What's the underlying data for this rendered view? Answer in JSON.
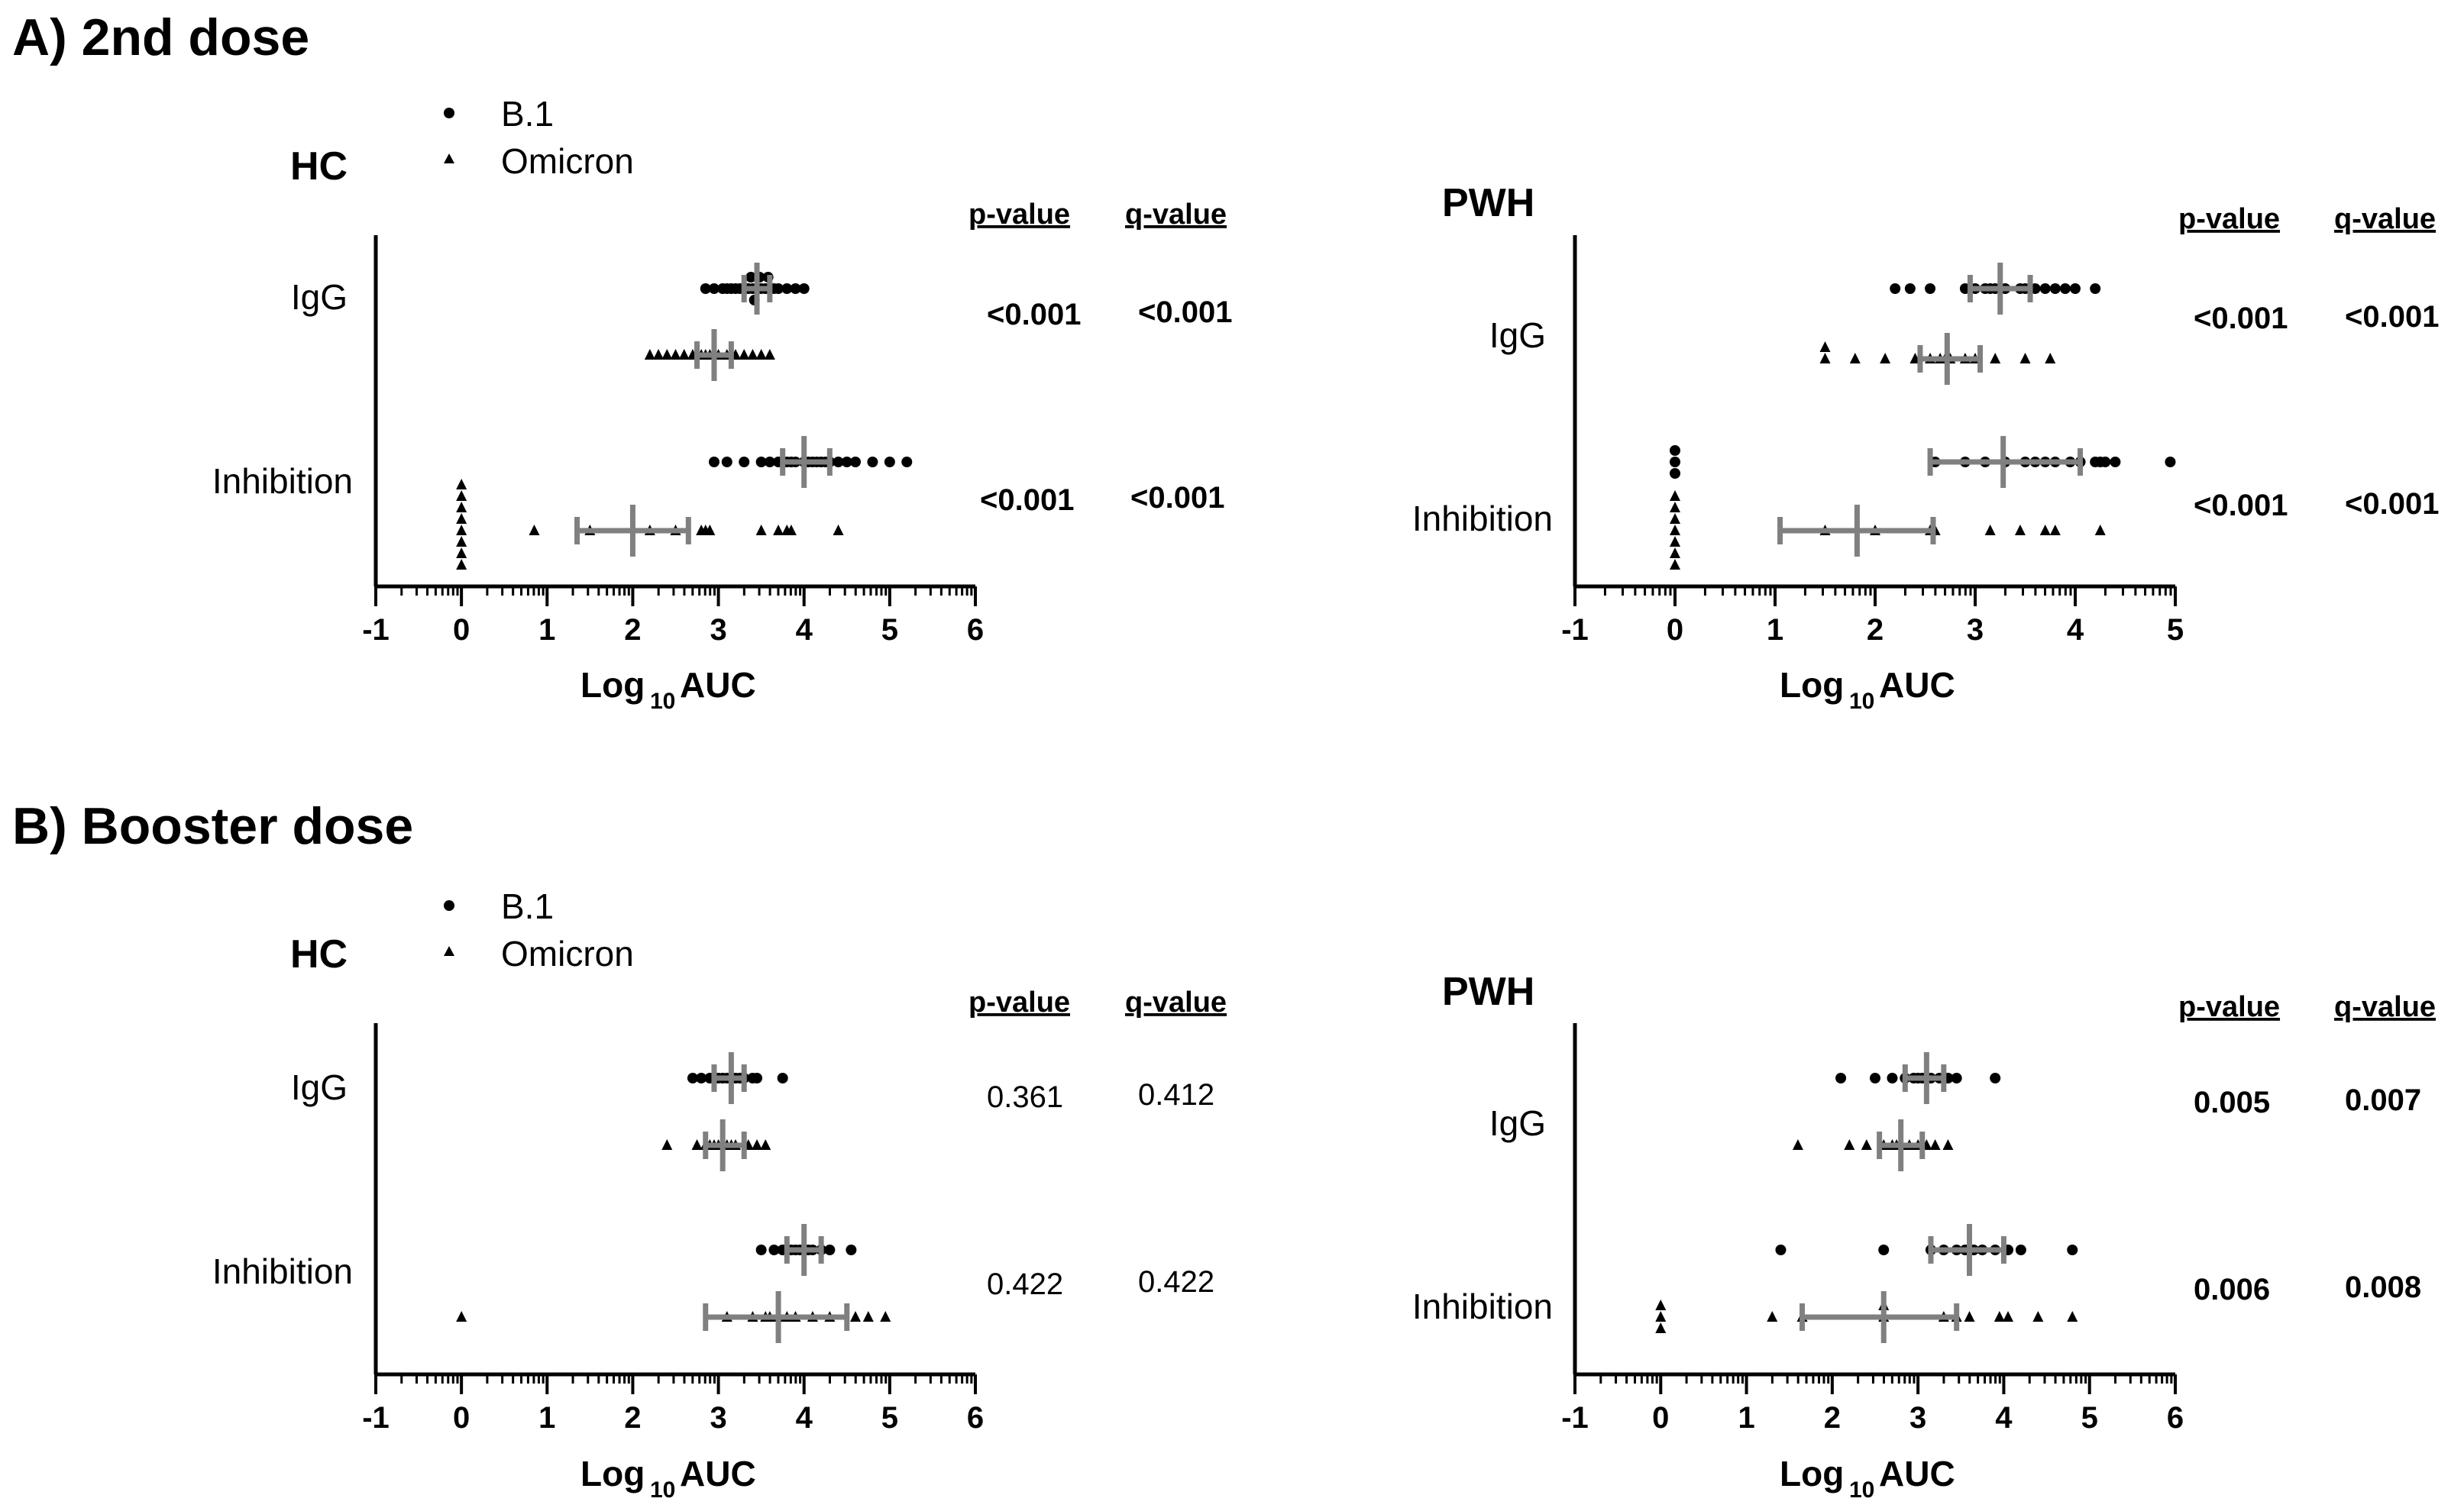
{
  "figure": {
    "section_a_title": "A) 2nd dose",
    "section_b_title": "B) Booster dose"
  },
  "colors": {
    "points": "#000000",
    "summary": "#808080",
    "axis": "#000000"
  },
  "legend": [
    {
      "label": "B.1",
      "marker": "circle"
    },
    {
      "label": "Omicron",
      "marker": "triangle"
    }
  ],
  "chart_data": [
    {
      "type": "scatter",
      "panel": "A-HC",
      "section": "A) 2nd dose",
      "title": "HC",
      "categories": [
        "IgG",
        "Inhibition"
      ],
      "xlabel_main": "Log",
      "xlabel_sub": "10",
      "xlabel_suffix": " AUC",
      "xlim": [
        -1,
        6
      ],
      "xticks": [
        -1,
        0,
        1,
        2,
        3,
        4,
        5,
        6
      ],
      "stats_headers": {
        "p": "p-value",
        "q": "q-value"
      },
      "stats": [
        {
          "category": "IgG",
          "p": "<0.001",
          "q": "<0.001",
          "bold": true
        },
        {
          "category": "Inhibition",
          "p": "<0.001",
          "q": "<0.001",
          "bold": true
        }
      ],
      "series": [
        {
          "name": "B.1",
          "category": "IgG",
          "values": [
            2.85,
            2.95,
            3.05,
            3.15,
            3.2,
            3.3,
            3.35,
            3.4,
            3.45,
            3.5,
            3.55,
            3.6,
            3.7,
            3.8,
            3.9,
            4.0,
            3.1,
            3.25,
            3.38,
            3.42,
            3.48,
            3.58,
            3.65
          ],
          "summary": {
            "center": 3.45,
            "low": 3.3,
            "high": 3.6
          }
        },
        {
          "name": "Omicron",
          "category": "IgG",
          "values": [
            2.2,
            2.3,
            2.4,
            2.5,
            2.6,
            2.7,
            2.8,
            2.85,
            2.9,
            2.95,
            3.0,
            3.1,
            3.3,
            3.4,
            3.5,
            3.6,
            2.75,
            3.2
          ],
          "summary": {
            "center": 2.95,
            "low": 2.75,
            "high": 3.15
          }
        },
        {
          "name": "B.1",
          "category": "Inhibition",
          "values": [
            2.95,
            3.1,
            3.3,
            3.5,
            3.6,
            3.7,
            3.8,
            3.9,
            4.0,
            4.1,
            4.2,
            4.3,
            4.4,
            4.5,
            4.6,
            4.8,
            5.0,
            5.2,
            3.85,
            4.05,
            4.25,
            3.75,
            4.15
          ],
          "summary": {
            "center": 4.0,
            "low": 3.75,
            "high": 4.3
          }
        },
        {
          "name": "Omicron",
          "category": "Inhibition",
          "values": [
            0,
            0,
            0,
            0,
            0,
            0,
            0,
            0,
            0.85,
            1.5,
            2.2,
            2.5,
            2.8,
            2.85,
            2.9,
            3.5,
            3.7,
            3.8,
            3.85,
            4.4
          ],
          "summary": {
            "center": 2.0,
            "low": 1.35,
            "high": 2.65
          }
        }
      ]
    },
    {
      "type": "scatter",
      "panel": "A-PWH",
      "section": "A) 2nd dose",
      "title": "PWH",
      "categories": [
        "IgG",
        "Inhibition"
      ],
      "xlabel_main": "Log",
      "xlabel_sub": "10",
      "xlabel_suffix": " AUC",
      "xlim": [
        -1,
        5
      ],
      "xticks": [
        -1,
        0,
        1,
        2,
        3,
        4,
        5
      ],
      "stats_headers": {
        "p": "p-value",
        "q": "q-value"
      },
      "stats": [
        {
          "category": "IgG",
          "p": "<0.001",
          "q": "<0.001",
          "bold": true
        },
        {
          "category": "Inhibition",
          "p": "<0.001",
          "q": "<0.001",
          "bold": true
        }
      ],
      "series": [
        {
          "name": "B.1",
          "category": "IgG",
          "values": [
            2.2,
            2.35,
            2.55,
            2.9,
            3.0,
            3.1,
            3.15,
            3.2,
            3.3,
            3.45,
            3.6,
            3.7,
            3.8,
            3.9,
            4.0,
            4.2,
            3.25,
            3.5
          ],
          "summary": {
            "center": 3.25,
            "low": 2.95,
            "high": 3.55
          }
        },
        {
          "name": "Omicron",
          "category": "IgG",
          "values": [
            1.5,
            1.8,
            2.1,
            2.4,
            2.55,
            2.7,
            2.75,
            2.9,
            3.0,
            3.2,
            3.5,
            3.75,
            1.5,
            2.65
          ],
          "summary": {
            "center": 2.72,
            "low": 2.45,
            "high": 3.05
          }
        },
        {
          "name": "B.1",
          "category": "Inhibition",
          "values": [
            0,
            0,
            0,
            2.6,
            2.9,
            3.1,
            3.3,
            3.5,
            3.7,
            3.8,
            3.95,
            4.05,
            4.2,
            4.25,
            4.3,
            4.4,
            4.95,
            3.6
          ],
          "summary": {
            "center": 3.28,
            "low": 2.55,
            "high": 4.05
          }
        },
        {
          "name": "Omicron",
          "category": "Inhibition",
          "values": [
            0,
            0,
            0,
            0,
            0,
            0,
            0,
            1.5,
            2.55,
            2.6,
            3.15,
            3.45,
            3.7,
            3.8,
            4.25,
            2.0
          ],
          "summary": {
            "center": 1.82,
            "low": 1.05,
            "high": 2.58
          }
        }
      ]
    },
    {
      "type": "scatter",
      "panel": "B-HC",
      "section": "B) Booster dose",
      "title": "HC",
      "categories": [
        "IgG",
        "Inhibition"
      ],
      "xlabel_main": "Log",
      "xlabel_sub": "10",
      "xlabel_suffix": " AUC",
      "xlim": [
        -1,
        6
      ],
      "xticks": [
        -1,
        0,
        1,
        2,
        3,
        4,
        5,
        6
      ],
      "stats_headers": {
        "p": "p-value",
        "q": "q-value"
      },
      "stats": [
        {
          "category": "IgG",
          "p": "0.361",
          "q": "0.412",
          "bold": false
        },
        {
          "category": "Inhibition",
          "p": "0.422",
          "q": "0.422",
          "bold": false
        }
      ],
      "series": [
        {
          "name": "B.1",
          "category": "IgG",
          "values": [
            2.7,
            2.8,
            2.9,
            3.0,
            3.05,
            3.1,
            3.2,
            3.25,
            3.3,
            3.4,
            3.45,
            3.75,
            2.95
          ],
          "summary": {
            "center": 3.15,
            "low": 2.95,
            "high": 3.3
          }
        },
        {
          "name": "Omicron",
          "category": "IgG",
          "values": [
            2.4,
            2.75,
            2.85,
            2.95,
            3.0,
            3.1,
            3.2,
            3.35,
            3.45,
            3.55,
            2.9,
            3.15
          ],
          "summary": {
            "center": 3.05,
            "low": 2.85,
            "high": 3.3
          }
        },
        {
          "name": "B.1",
          "category": "Inhibition",
          "values": [
            3.5,
            3.65,
            3.75,
            3.85,
            3.95,
            4.0,
            4.1,
            4.2,
            4.3,
            4.55,
            3.9,
            4.05
          ],
          "summary": {
            "center": 4.0,
            "low": 3.8,
            "high": 4.2
          }
        },
        {
          "name": "Omicron",
          "category": "Inhibition",
          "values": [
            0,
            3.1,
            3.4,
            3.55,
            3.7,
            3.8,
            3.9,
            4.1,
            4.3,
            4.6,
            4.75,
            4.95,
            3.6
          ],
          "summary": {
            "center": 3.7,
            "low": 2.85,
            "high": 4.5
          }
        }
      ]
    },
    {
      "type": "scatter",
      "panel": "B-PWH",
      "section": "B) Booster dose",
      "title": "PWH",
      "categories": [
        "IgG",
        "Inhibition"
      ],
      "xlabel_main": "Log",
      "xlabel_sub": "10",
      "xlabel_suffix": " AUC",
      "xlim": [
        -1,
        6
      ],
      "xticks": [
        -1,
        0,
        1,
        2,
        3,
        4,
        5,
        6
      ],
      "stats_headers": {
        "p": "p-value",
        "q": "q-value"
      },
      "stats": [
        {
          "category": "IgG",
          "p": "0.005",
          "q": "0.007",
          "bold": true
        },
        {
          "category": "Inhibition",
          "p": "0.006",
          "q": "0.008",
          "bold": true
        }
      ],
      "series": [
        {
          "name": "B.1",
          "category": "IgG",
          "values": [
            2.1,
            2.5,
            2.7,
            2.85,
            2.95,
            3.05,
            3.15,
            3.25,
            3.35,
            3.45,
            3.9,
            3.0
          ],
          "summary": {
            "center": 3.1,
            "low": 2.85,
            "high": 3.3
          }
        },
        {
          "name": "Omicron",
          "category": "IgG",
          "values": [
            1.6,
            2.2,
            2.4,
            2.6,
            2.7,
            2.8,
            2.9,
            3.0,
            3.1,
            3.2,
            3.35,
            2.75
          ],
          "summary": {
            "center": 2.8,
            "low": 2.55,
            "high": 3.05
          }
        },
        {
          "name": "B.1",
          "category": "Inhibition",
          "values": [
            1.4,
            2.6,
            3.15,
            3.3,
            3.45,
            3.55,
            3.65,
            3.75,
            3.9,
            4.05,
            4.2,
            4.8,
            3.6
          ],
          "summary": {
            "center": 3.6,
            "low": 3.15,
            "high": 4.0
          }
        },
        {
          "name": "Omicron",
          "category": "Inhibition",
          "values": [
            0,
            0,
            0,
            1.3,
            1.65,
            2.6,
            3.3,
            3.45,
            3.6,
            3.95,
            4.05,
            4.4,
            4.8,
            2.6
          ],
          "summary": {
            "center": 2.6,
            "low": 1.65,
            "high": 3.45
          }
        }
      ]
    }
  ]
}
